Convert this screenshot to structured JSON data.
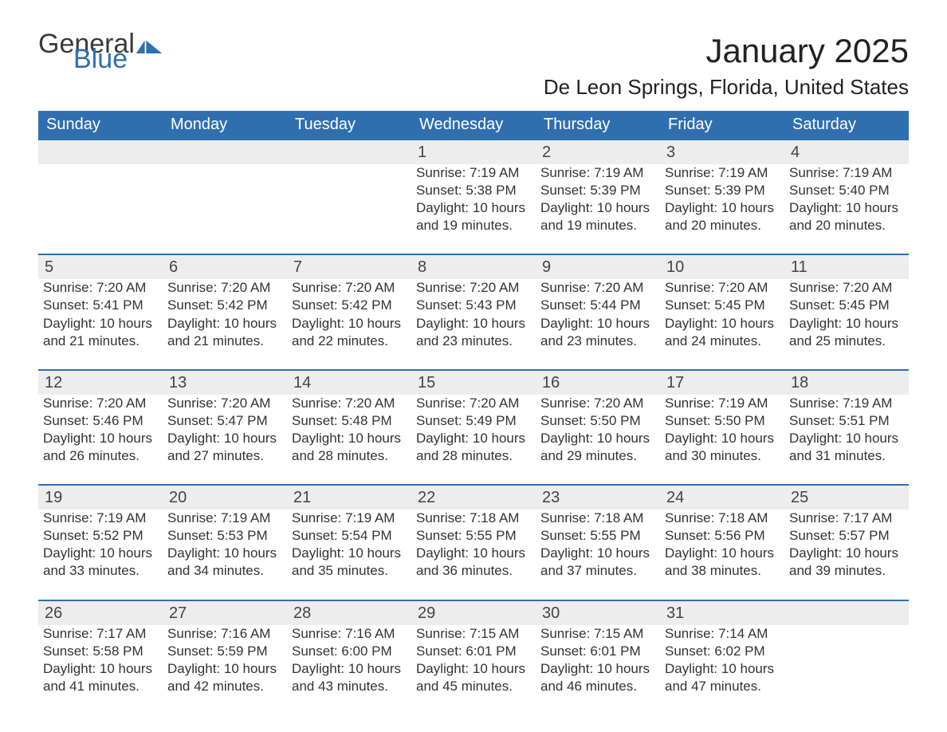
{
  "brand": {
    "part1": "General",
    "part2": "Blue",
    "color_dark": "#3a3a3a",
    "color_blue": "#2f6fb0"
  },
  "title": "January 2025",
  "location": "De Leon Springs, Florida, United States",
  "colors": {
    "header_bg": "#2f6fb0",
    "header_text": "#ffffff",
    "daynum_bg": "#ededed",
    "row_border": "#2f6fb0",
    "body_text": "#333333",
    "page_bg": "#ffffff"
  },
  "typography": {
    "title_fontsize": 42,
    "location_fontsize": 26,
    "header_fontsize": 20,
    "daynum_fontsize": 20,
    "cell_fontsize": 17
  },
  "day_headers": [
    "Sunday",
    "Monday",
    "Tuesday",
    "Wednesday",
    "Thursday",
    "Friday",
    "Saturday"
  ],
  "weeks": [
    {
      "days": [
        null,
        null,
        null,
        {
          "num": "1",
          "sunrise": "Sunrise: 7:19 AM",
          "sunset": "Sunset: 5:38 PM",
          "dl1": "Daylight: 10 hours",
          "dl2": "and 19 minutes."
        },
        {
          "num": "2",
          "sunrise": "Sunrise: 7:19 AM",
          "sunset": "Sunset: 5:39 PM",
          "dl1": "Daylight: 10 hours",
          "dl2": "and 19 minutes."
        },
        {
          "num": "3",
          "sunrise": "Sunrise: 7:19 AM",
          "sunset": "Sunset: 5:39 PM",
          "dl1": "Daylight: 10 hours",
          "dl2": "and 20 minutes."
        },
        {
          "num": "4",
          "sunrise": "Sunrise: 7:19 AM",
          "sunset": "Sunset: 5:40 PM",
          "dl1": "Daylight: 10 hours",
          "dl2": "and 20 minutes."
        }
      ]
    },
    {
      "days": [
        {
          "num": "5",
          "sunrise": "Sunrise: 7:20 AM",
          "sunset": "Sunset: 5:41 PM",
          "dl1": "Daylight: 10 hours",
          "dl2": "and 21 minutes."
        },
        {
          "num": "6",
          "sunrise": "Sunrise: 7:20 AM",
          "sunset": "Sunset: 5:42 PM",
          "dl1": "Daylight: 10 hours",
          "dl2": "and 21 minutes."
        },
        {
          "num": "7",
          "sunrise": "Sunrise: 7:20 AM",
          "sunset": "Sunset: 5:42 PM",
          "dl1": "Daylight: 10 hours",
          "dl2": "and 22 minutes."
        },
        {
          "num": "8",
          "sunrise": "Sunrise: 7:20 AM",
          "sunset": "Sunset: 5:43 PM",
          "dl1": "Daylight: 10 hours",
          "dl2": "and 23 minutes."
        },
        {
          "num": "9",
          "sunrise": "Sunrise: 7:20 AM",
          "sunset": "Sunset: 5:44 PM",
          "dl1": "Daylight: 10 hours",
          "dl2": "and 23 minutes."
        },
        {
          "num": "10",
          "sunrise": "Sunrise: 7:20 AM",
          "sunset": "Sunset: 5:45 PM",
          "dl1": "Daylight: 10 hours",
          "dl2": "and 24 minutes."
        },
        {
          "num": "11",
          "sunrise": "Sunrise: 7:20 AM",
          "sunset": "Sunset: 5:45 PM",
          "dl1": "Daylight: 10 hours",
          "dl2": "and 25 minutes."
        }
      ]
    },
    {
      "days": [
        {
          "num": "12",
          "sunrise": "Sunrise: 7:20 AM",
          "sunset": "Sunset: 5:46 PM",
          "dl1": "Daylight: 10 hours",
          "dl2": "and 26 minutes."
        },
        {
          "num": "13",
          "sunrise": "Sunrise: 7:20 AM",
          "sunset": "Sunset: 5:47 PM",
          "dl1": "Daylight: 10 hours",
          "dl2": "and 27 minutes."
        },
        {
          "num": "14",
          "sunrise": "Sunrise: 7:20 AM",
          "sunset": "Sunset: 5:48 PM",
          "dl1": "Daylight: 10 hours",
          "dl2": "and 28 minutes."
        },
        {
          "num": "15",
          "sunrise": "Sunrise: 7:20 AM",
          "sunset": "Sunset: 5:49 PM",
          "dl1": "Daylight: 10 hours",
          "dl2": "and 28 minutes."
        },
        {
          "num": "16",
          "sunrise": "Sunrise: 7:20 AM",
          "sunset": "Sunset: 5:50 PM",
          "dl1": "Daylight: 10 hours",
          "dl2": "and 29 minutes."
        },
        {
          "num": "17",
          "sunrise": "Sunrise: 7:19 AM",
          "sunset": "Sunset: 5:50 PM",
          "dl1": "Daylight: 10 hours",
          "dl2": "and 30 minutes."
        },
        {
          "num": "18",
          "sunrise": "Sunrise: 7:19 AM",
          "sunset": "Sunset: 5:51 PM",
          "dl1": "Daylight: 10 hours",
          "dl2": "and 31 minutes."
        }
      ]
    },
    {
      "days": [
        {
          "num": "19",
          "sunrise": "Sunrise: 7:19 AM",
          "sunset": "Sunset: 5:52 PM",
          "dl1": "Daylight: 10 hours",
          "dl2": "and 33 minutes."
        },
        {
          "num": "20",
          "sunrise": "Sunrise: 7:19 AM",
          "sunset": "Sunset: 5:53 PM",
          "dl1": "Daylight: 10 hours",
          "dl2": "and 34 minutes."
        },
        {
          "num": "21",
          "sunrise": "Sunrise: 7:19 AM",
          "sunset": "Sunset: 5:54 PM",
          "dl1": "Daylight: 10 hours",
          "dl2": "and 35 minutes."
        },
        {
          "num": "22",
          "sunrise": "Sunrise: 7:18 AM",
          "sunset": "Sunset: 5:55 PM",
          "dl1": "Daylight: 10 hours",
          "dl2": "and 36 minutes."
        },
        {
          "num": "23",
          "sunrise": "Sunrise: 7:18 AM",
          "sunset": "Sunset: 5:55 PM",
          "dl1": "Daylight: 10 hours",
          "dl2": "and 37 minutes."
        },
        {
          "num": "24",
          "sunrise": "Sunrise: 7:18 AM",
          "sunset": "Sunset: 5:56 PM",
          "dl1": "Daylight: 10 hours",
          "dl2": "and 38 minutes."
        },
        {
          "num": "25",
          "sunrise": "Sunrise: 7:17 AM",
          "sunset": "Sunset: 5:57 PM",
          "dl1": "Daylight: 10 hours",
          "dl2": "and 39 minutes."
        }
      ]
    },
    {
      "days": [
        {
          "num": "26",
          "sunrise": "Sunrise: 7:17 AM",
          "sunset": "Sunset: 5:58 PM",
          "dl1": "Daylight: 10 hours",
          "dl2": "and 41 minutes."
        },
        {
          "num": "27",
          "sunrise": "Sunrise: 7:16 AM",
          "sunset": "Sunset: 5:59 PM",
          "dl1": "Daylight: 10 hours",
          "dl2": "and 42 minutes."
        },
        {
          "num": "28",
          "sunrise": "Sunrise: 7:16 AM",
          "sunset": "Sunset: 6:00 PM",
          "dl1": "Daylight: 10 hours",
          "dl2": "and 43 minutes."
        },
        {
          "num": "29",
          "sunrise": "Sunrise: 7:15 AM",
          "sunset": "Sunset: 6:01 PM",
          "dl1": "Daylight: 10 hours",
          "dl2": "and 45 minutes."
        },
        {
          "num": "30",
          "sunrise": "Sunrise: 7:15 AM",
          "sunset": "Sunset: 6:01 PM",
          "dl1": "Daylight: 10 hours",
          "dl2": "and 46 minutes."
        },
        {
          "num": "31",
          "sunrise": "Sunrise: 7:14 AM",
          "sunset": "Sunset: 6:02 PM",
          "dl1": "Daylight: 10 hours",
          "dl2": "and 47 minutes."
        },
        null
      ]
    }
  ]
}
